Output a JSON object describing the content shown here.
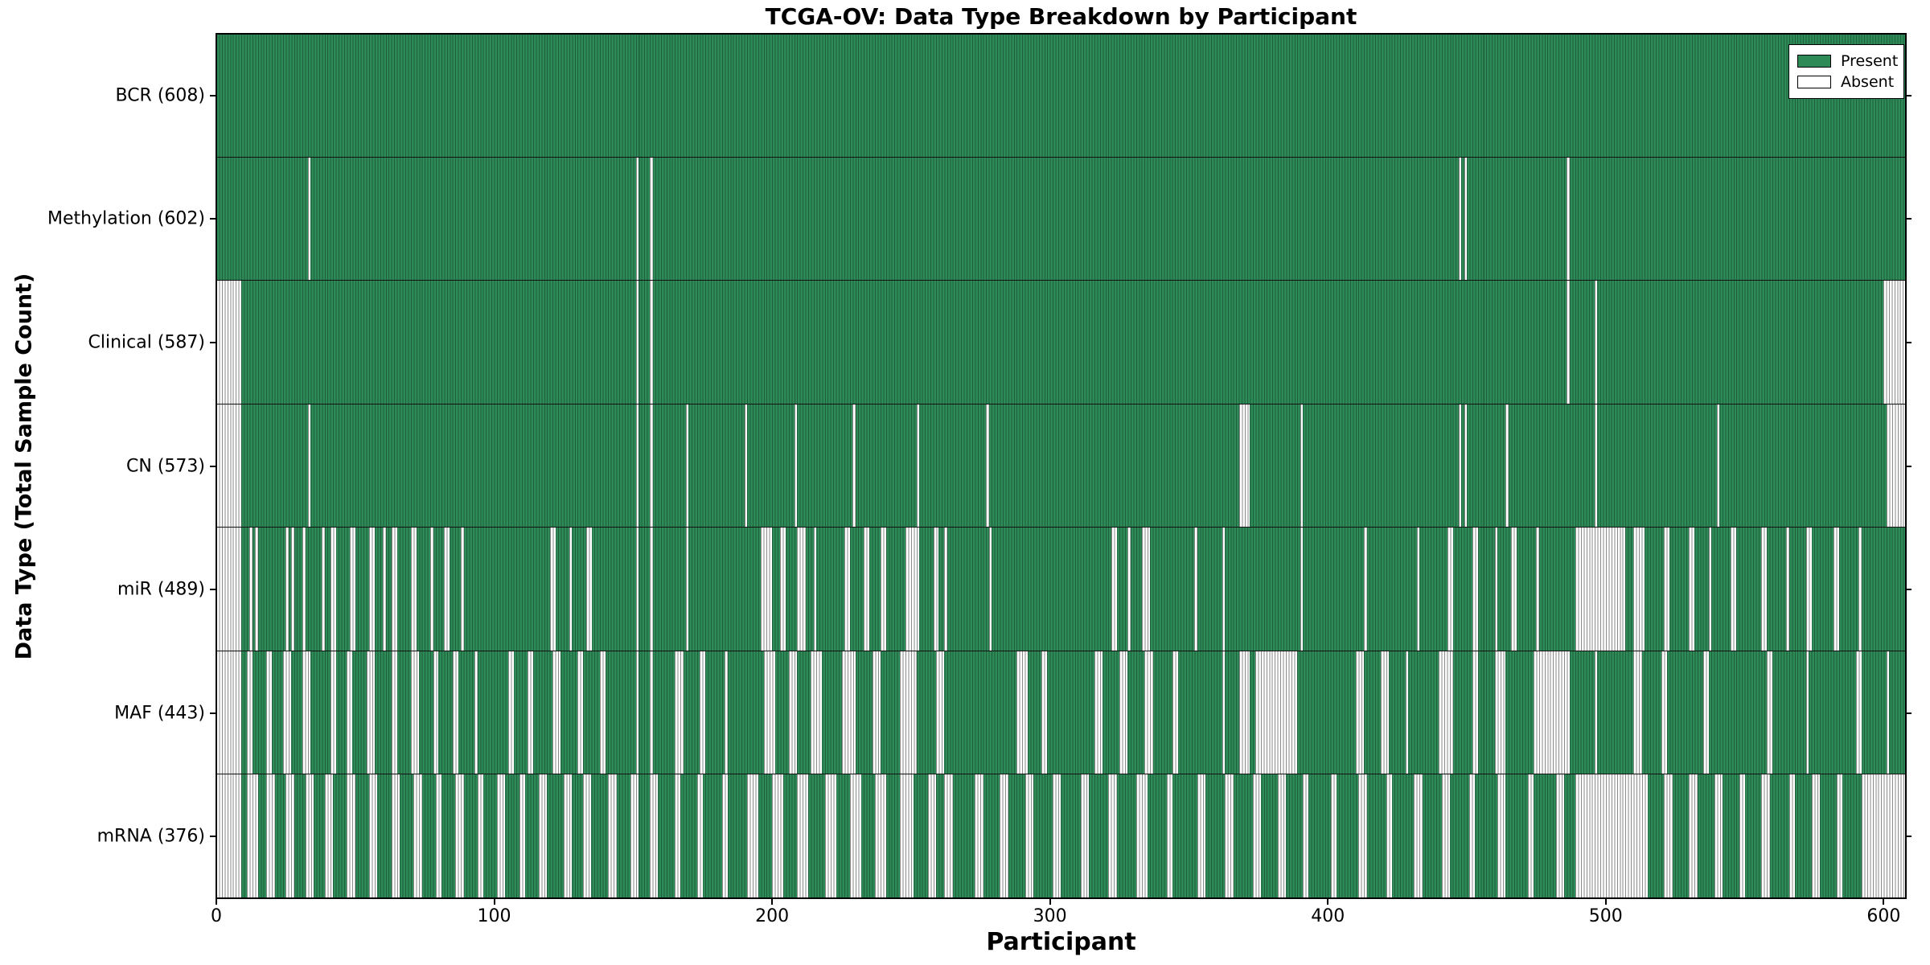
{
  "chart_data": {
    "type": "heatmap",
    "title": "TCGA-OV: Data Type Breakdown by Participant",
    "xlabel": "Participant",
    "ylabel": "Data Type (Total Sample Count)",
    "xlim": [
      0,
      608
    ],
    "x_ticks": [
      0,
      100,
      200,
      300,
      400,
      500,
      600
    ],
    "n_participants": 608,
    "grid": false,
    "legend_position": "upper right",
    "legend": [
      {
        "label": "Present",
        "color": "#2e8b57"
      },
      {
        "label": "Absent",
        "color": "#ffffff"
      }
    ],
    "colors": {
      "present": "#2e8b57",
      "present_edge": "#1d5f3d",
      "absent": "#ffffff",
      "absent_edge": "#8a8a8a",
      "axis": "#000000"
    },
    "rows": [
      {
        "name": "BCR",
        "label": "BCR (608)",
        "present_count": 608,
        "absent_ranges": []
      },
      {
        "name": "Methylation",
        "label": "Methylation (602)",
        "present_count": 602,
        "absent_ranges": [
          [
            33,
            33
          ],
          [
            151,
            151
          ],
          [
            156,
            156
          ],
          [
            447,
            447
          ],
          [
            449,
            449
          ],
          [
            486,
            486
          ]
        ]
      },
      {
        "name": "Clinical",
        "label": "Clinical (587)",
        "present_count": 587,
        "absent_ranges": [
          [
            0,
            8
          ],
          [
            151,
            151
          ],
          [
            156,
            156
          ],
          [
            486,
            486
          ],
          [
            496,
            496
          ],
          [
            600,
            607
          ]
        ]
      },
      {
        "name": "CN",
        "label": "CN (573)",
        "present_count": 573,
        "absent_ranges": [
          [
            0,
            8
          ],
          [
            33,
            33
          ],
          [
            151,
            151
          ],
          [
            156,
            156
          ],
          [
            169,
            169
          ],
          [
            190,
            190
          ],
          [
            208,
            208
          ],
          [
            229,
            229
          ],
          [
            252,
            252
          ],
          [
            277,
            277
          ],
          [
            368,
            371
          ],
          [
            390,
            390
          ],
          [
            447,
            447
          ],
          [
            449,
            449
          ],
          [
            464,
            464
          ],
          [
            496,
            496
          ],
          [
            540,
            540
          ],
          [
            601,
            607
          ]
        ]
      },
      {
        "name": "miR",
        "label": "miR (489)",
        "present_count": 489,
        "absent_ranges": [
          [
            0,
            8
          ],
          [
            12,
            12
          ],
          [
            14,
            14
          ],
          [
            25,
            25
          ],
          [
            27,
            27
          ],
          [
            31,
            31
          ],
          [
            38,
            38
          ],
          [
            41,
            42
          ],
          [
            48,
            49
          ],
          [
            55,
            56
          ],
          [
            60,
            60
          ],
          [
            63,
            64
          ],
          [
            70,
            71
          ],
          [
            77,
            77
          ],
          [
            82,
            83
          ],
          [
            88,
            88
          ],
          [
            120,
            121
          ],
          [
            127,
            127
          ],
          [
            133,
            134
          ],
          [
            151,
            151
          ],
          [
            156,
            156
          ],
          [
            169,
            169
          ],
          [
            196,
            199
          ],
          [
            203,
            204
          ],
          [
            209,
            211
          ],
          [
            215,
            215
          ],
          [
            226,
            227
          ],
          [
            233,
            234
          ],
          [
            239,
            240
          ],
          [
            248,
            252
          ],
          [
            258,
            259
          ],
          [
            262,
            262
          ],
          [
            278,
            278
          ],
          [
            322,
            323
          ],
          [
            328,
            328
          ],
          [
            333,
            335
          ],
          [
            352,
            352
          ],
          [
            362,
            362
          ],
          [
            390,
            390
          ],
          [
            413,
            413
          ],
          [
            432,
            432
          ],
          [
            443,
            444
          ],
          [
            452,
            453
          ],
          [
            460,
            460
          ],
          [
            466,
            467
          ],
          [
            475,
            475
          ],
          [
            489,
            506
          ],
          [
            510,
            513
          ],
          [
            521,
            522
          ],
          [
            530,
            531
          ],
          [
            537,
            537
          ],
          [
            545,
            546
          ],
          [
            556,
            557
          ],
          [
            565,
            565
          ],
          [
            572,
            573
          ],
          [
            582,
            583
          ],
          [
            591,
            591
          ]
        ]
      },
      {
        "name": "MAF",
        "label": "MAF (443)",
        "present_count": 443,
        "absent_ranges": [
          [
            0,
            8
          ],
          [
            11,
            12
          ],
          [
            18,
            19
          ],
          [
            24,
            26
          ],
          [
            31,
            33
          ],
          [
            41,
            42
          ],
          [
            47,
            48
          ],
          [
            54,
            56
          ],
          [
            63,
            64
          ],
          [
            70,
            72
          ],
          [
            78,
            79
          ],
          [
            85,
            86
          ],
          [
            93,
            93
          ],
          [
            105,
            106
          ],
          [
            112,
            113
          ],
          [
            121,
            123
          ],
          [
            130,
            131
          ],
          [
            138,
            139
          ],
          [
            151,
            151
          ],
          [
            156,
            156
          ],
          [
            165,
            167
          ],
          [
            174,
            175
          ],
          [
            183,
            183
          ],
          [
            197,
            200
          ],
          [
            206,
            208
          ],
          [
            214,
            217
          ],
          [
            225,
            229
          ],
          [
            236,
            238
          ],
          [
            246,
            251
          ],
          [
            259,
            261
          ],
          [
            288,
            291
          ],
          [
            297,
            298
          ],
          [
            316,
            318
          ],
          [
            325,
            327
          ],
          [
            334,
            336
          ],
          [
            344,
            345
          ],
          [
            362,
            362
          ],
          [
            368,
            371
          ],
          [
            374,
            388
          ],
          [
            410,
            412
          ],
          [
            419,
            421
          ],
          [
            428,
            428
          ],
          [
            440,
            444
          ],
          [
            452,
            453
          ],
          [
            460,
            463
          ],
          [
            474,
            486
          ],
          [
            496,
            496
          ],
          [
            510,
            512
          ],
          [
            520,
            521
          ],
          [
            535,
            536
          ],
          [
            558,
            559
          ],
          [
            572,
            572
          ],
          [
            590,
            591
          ],
          [
            601,
            601
          ]
        ]
      },
      {
        "name": "mRNA",
        "label": "mRNA (376)",
        "present_count": 376,
        "absent_ranges": [
          [
            0,
            8
          ],
          [
            11,
            14
          ],
          [
            18,
            20
          ],
          [
            25,
            27
          ],
          [
            32,
            34
          ],
          [
            39,
            41
          ],
          [
            47,
            49
          ],
          [
            55,
            57
          ],
          [
            63,
            65
          ],
          [
            71,
            73
          ],
          [
            79,
            80
          ],
          [
            86,
            88
          ],
          [
            94,
            95
          ],
          [
            101,
            103
          ],
          [
            109,
            110
          ],
          [
            116,
            118
          ],
          [
            125,
            127
          ],
          [
            132,
            134
          ],
          [
            141,
            143
          ],
          [
            149,
            151
          ],
          [
            156,
            158
          ],
          [
            165,
            166
          ],
          [
            173,
            174
          ],
          [
            182,
            183
          ],
          [
            191,
            194
          ],
          [
            200,
            203
          ],
          [
            209,
            212
          ],
          [
            219,
            222
          ],
          [
            228,
            231
          ],
          [
            237,
            240
          ],
          [
            246,
            250
          ],
          [
            256,
            258
          ],
          [
            262,
            264
          ],
          [
            273,
            275
          ],
          [
            282,
            284
          ],
          [
            291,
            293
          ],
          [
            301,
            303
          ],
          [
            311,
            313
          ],
          [
            321,
            323
          ],
          [
            331,
            334
          ],
          [
            342,
            343
          ],
          [
            353,
            355
          ],
          [
            363,
            365
          ],
          [
            373,
            375
          ],
          [
            382,
            384
          ],
          [
            391,
            392
          ],
          [
            401,
            402
          ],
          [
            411,
            413
          ],
          [
            421,
            422
          ],
          [
            431,
            433
          ],
          [
            441,
            443
          ],
          [
            451,
            452
          ],
          [
            461,
            463
          ],
          [
            472,
            473
          ],
          [
            482,
            484
          ],
          [
            489,
            514
          ],
          [
            521,
            523
          ],
          [
            530,
            532
          ],
          [
            539,
            541
          ],
          [
            548,
            549
          ],
          [
            556,
            558
          ],
          [
            566,
            567
          ],
          [
            574,
            576
          ],
          [
            583,
            584
          ],
          [
            592,
            607
          ]
        ]
      }
    ]
  }
}
